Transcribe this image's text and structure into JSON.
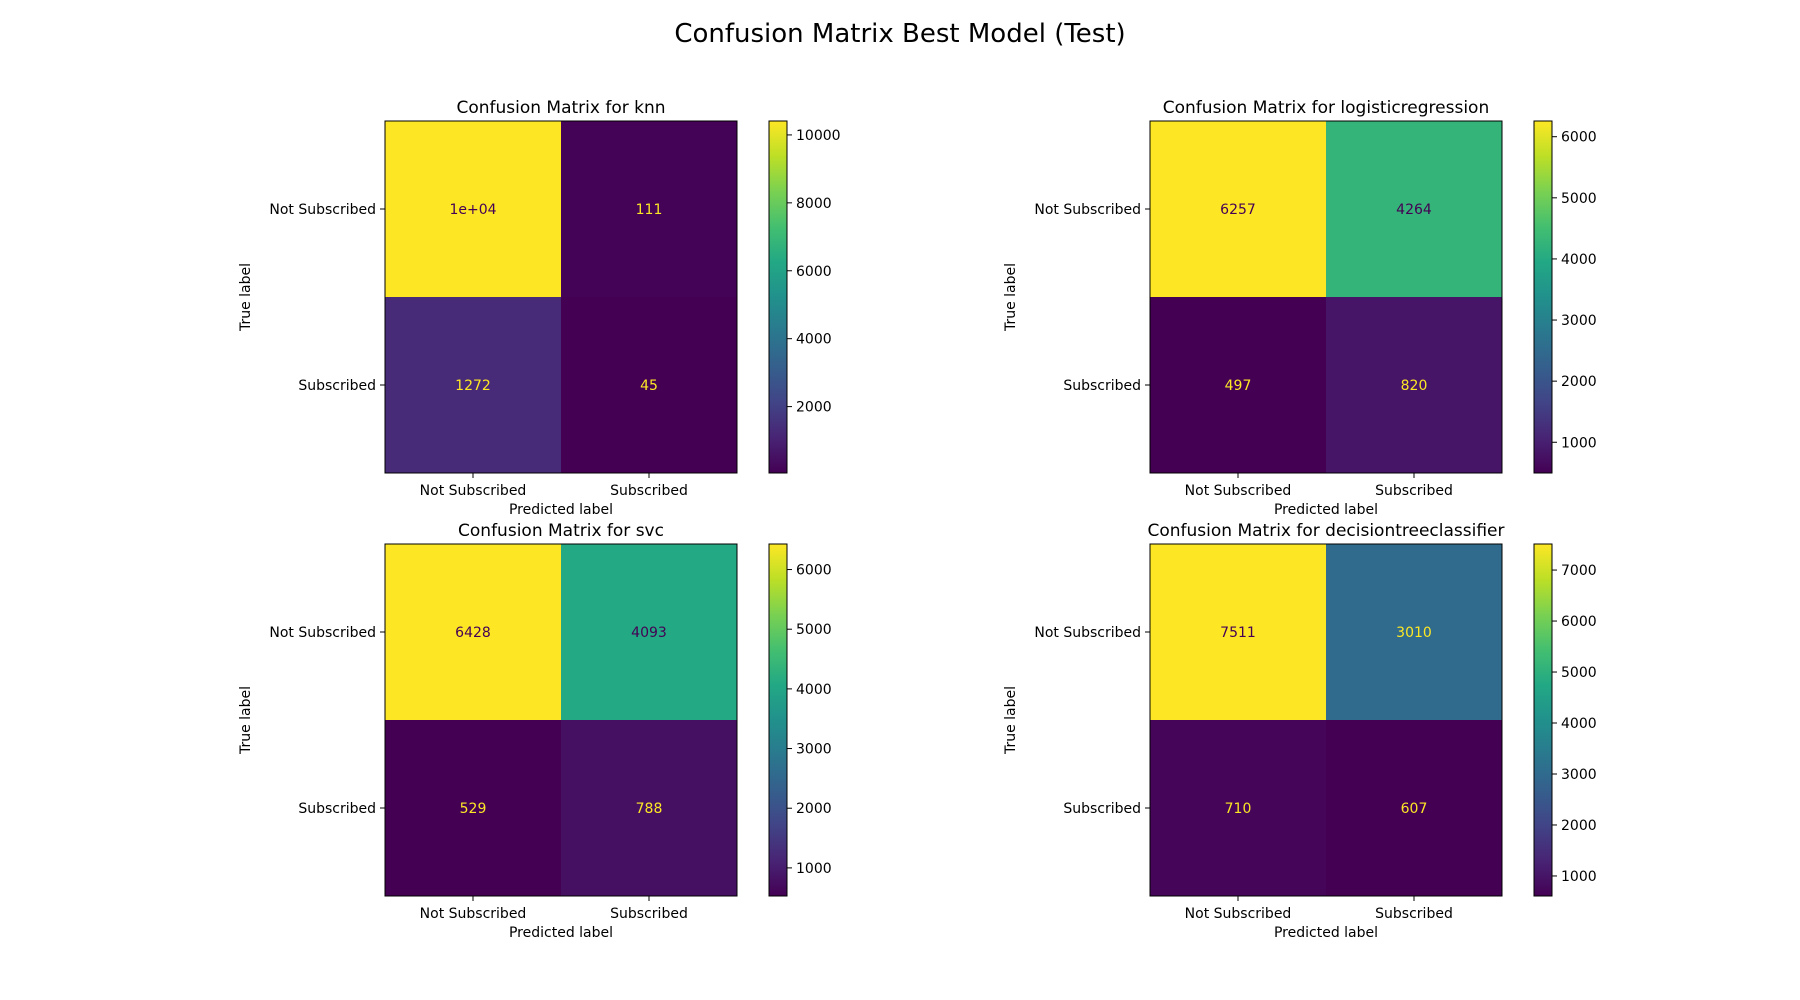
{
  "figure": {
    "title": "Confusion Matrix Best Model (Test)"
  },
  "chart_data": [
    {
      "type": "heatmap",
      "title": "Confusion Matrix for knn",
      "xlabel": "Predicted label",
      "ylabel": "True label",
      "x_categories": [
        "Not Subscribed",
        "Subscribed"
      ],
      "y_categories": [
        "Not Subscribed",
        "Subscribed"
      ],
      "values": [
        [
          10410,
          111
        ],
        [
          1272,
          45
        ]
      ],
      "cell_labels": [
        [
          "1e+04",
          "111"
        ],
        [
          "1272",
          "45"
        ]
      ],
      "colormap": "viridis",
      "color_range": [
        45,
        10410
      ],
      "colorbar_ticks": [
        2000,
        4000,
        6000,
        8000,
        10000
      ],
      "grid": false
    },
    {
      "type": "heatmap",
      "title": "Confusion Matrix for logisticregression",
      "xlabel": "Predicted label",
      "ylabel": "True label",
      "x_categories": [
        "Not Subscribed",
        "Subscribed"
      ],
      "y_categories": [
        "Not Subscribed",
        "Subscribed"
      ],
      "values": [
        [
          6257,
          4264
        ],
        [
          497,
          820
        ]
      ],
      "cell_labels": [
        [
          "6257",
          "4264"
        ],
        [
          "497",
          "820"
        ]
      ],
      "colormap": "viridis",
      "color_range": [
        497,
        6257
      ],
      "colorbar_ticks": [
        1000,
        2000,
        3000,
        4000,
        5000,
        6000
      ],
      "grid": false
    },
    {
      "type": "heatmap",
      "title": "Confusion Matrix for svc",
      "xlabel": "Predicted label",
      "ylabel": "True label",
      "x_categories": [
        "Not Subscribed",
        "Subscribed"
      ],
      "y_categories": [
        "Not Subscribed",
        "Subscribed"
      ],
      "values": [
        [
          6428,
          4093
        ],
        [
          529,
          788
        ]
      ],
      "cell_labels": [
        [
          "6428",
          "4093"
        ],
        [
          "529",
          "788"
        ]
      ],
      "colormap": "viridis",
      "color_range": [
        529,
        6428
      ],
      "colorbar_ticks": [
        1000,
        2000,
        3000,
        4000,
        5000,
        6000
      ],
      "grid": false
    },
    {
      "type": "heatmap",
      "title": "Confusion Matrix for decisiontreeclassifier",
      "xlabel": "Predicted label",
      "ylabel": "True label",
      "x_categories": [
        "Not Subscribed",
        "Subscribed"
      ],
      "y_categories": [
        "Not Subscribed",
        "Subscribed"
      ],
      "values": [
        [
          7511,
          3010
        ],
        [
          710,
          607
        ]
      ],
      "cell_labels": [
        [
          "7511",
          "3010"
        ],
        [
          "710",
          "607"
        ]
      ],
      "colormap": "viridis",
      "color_range": [
        607,
        7511
      ],
      "colorbar_ticks": [
        1000,
        2000,
        3000,
        4000,
        5000,
        6000,
        7000
      ],
      "grid": false
    }
  ]
}
